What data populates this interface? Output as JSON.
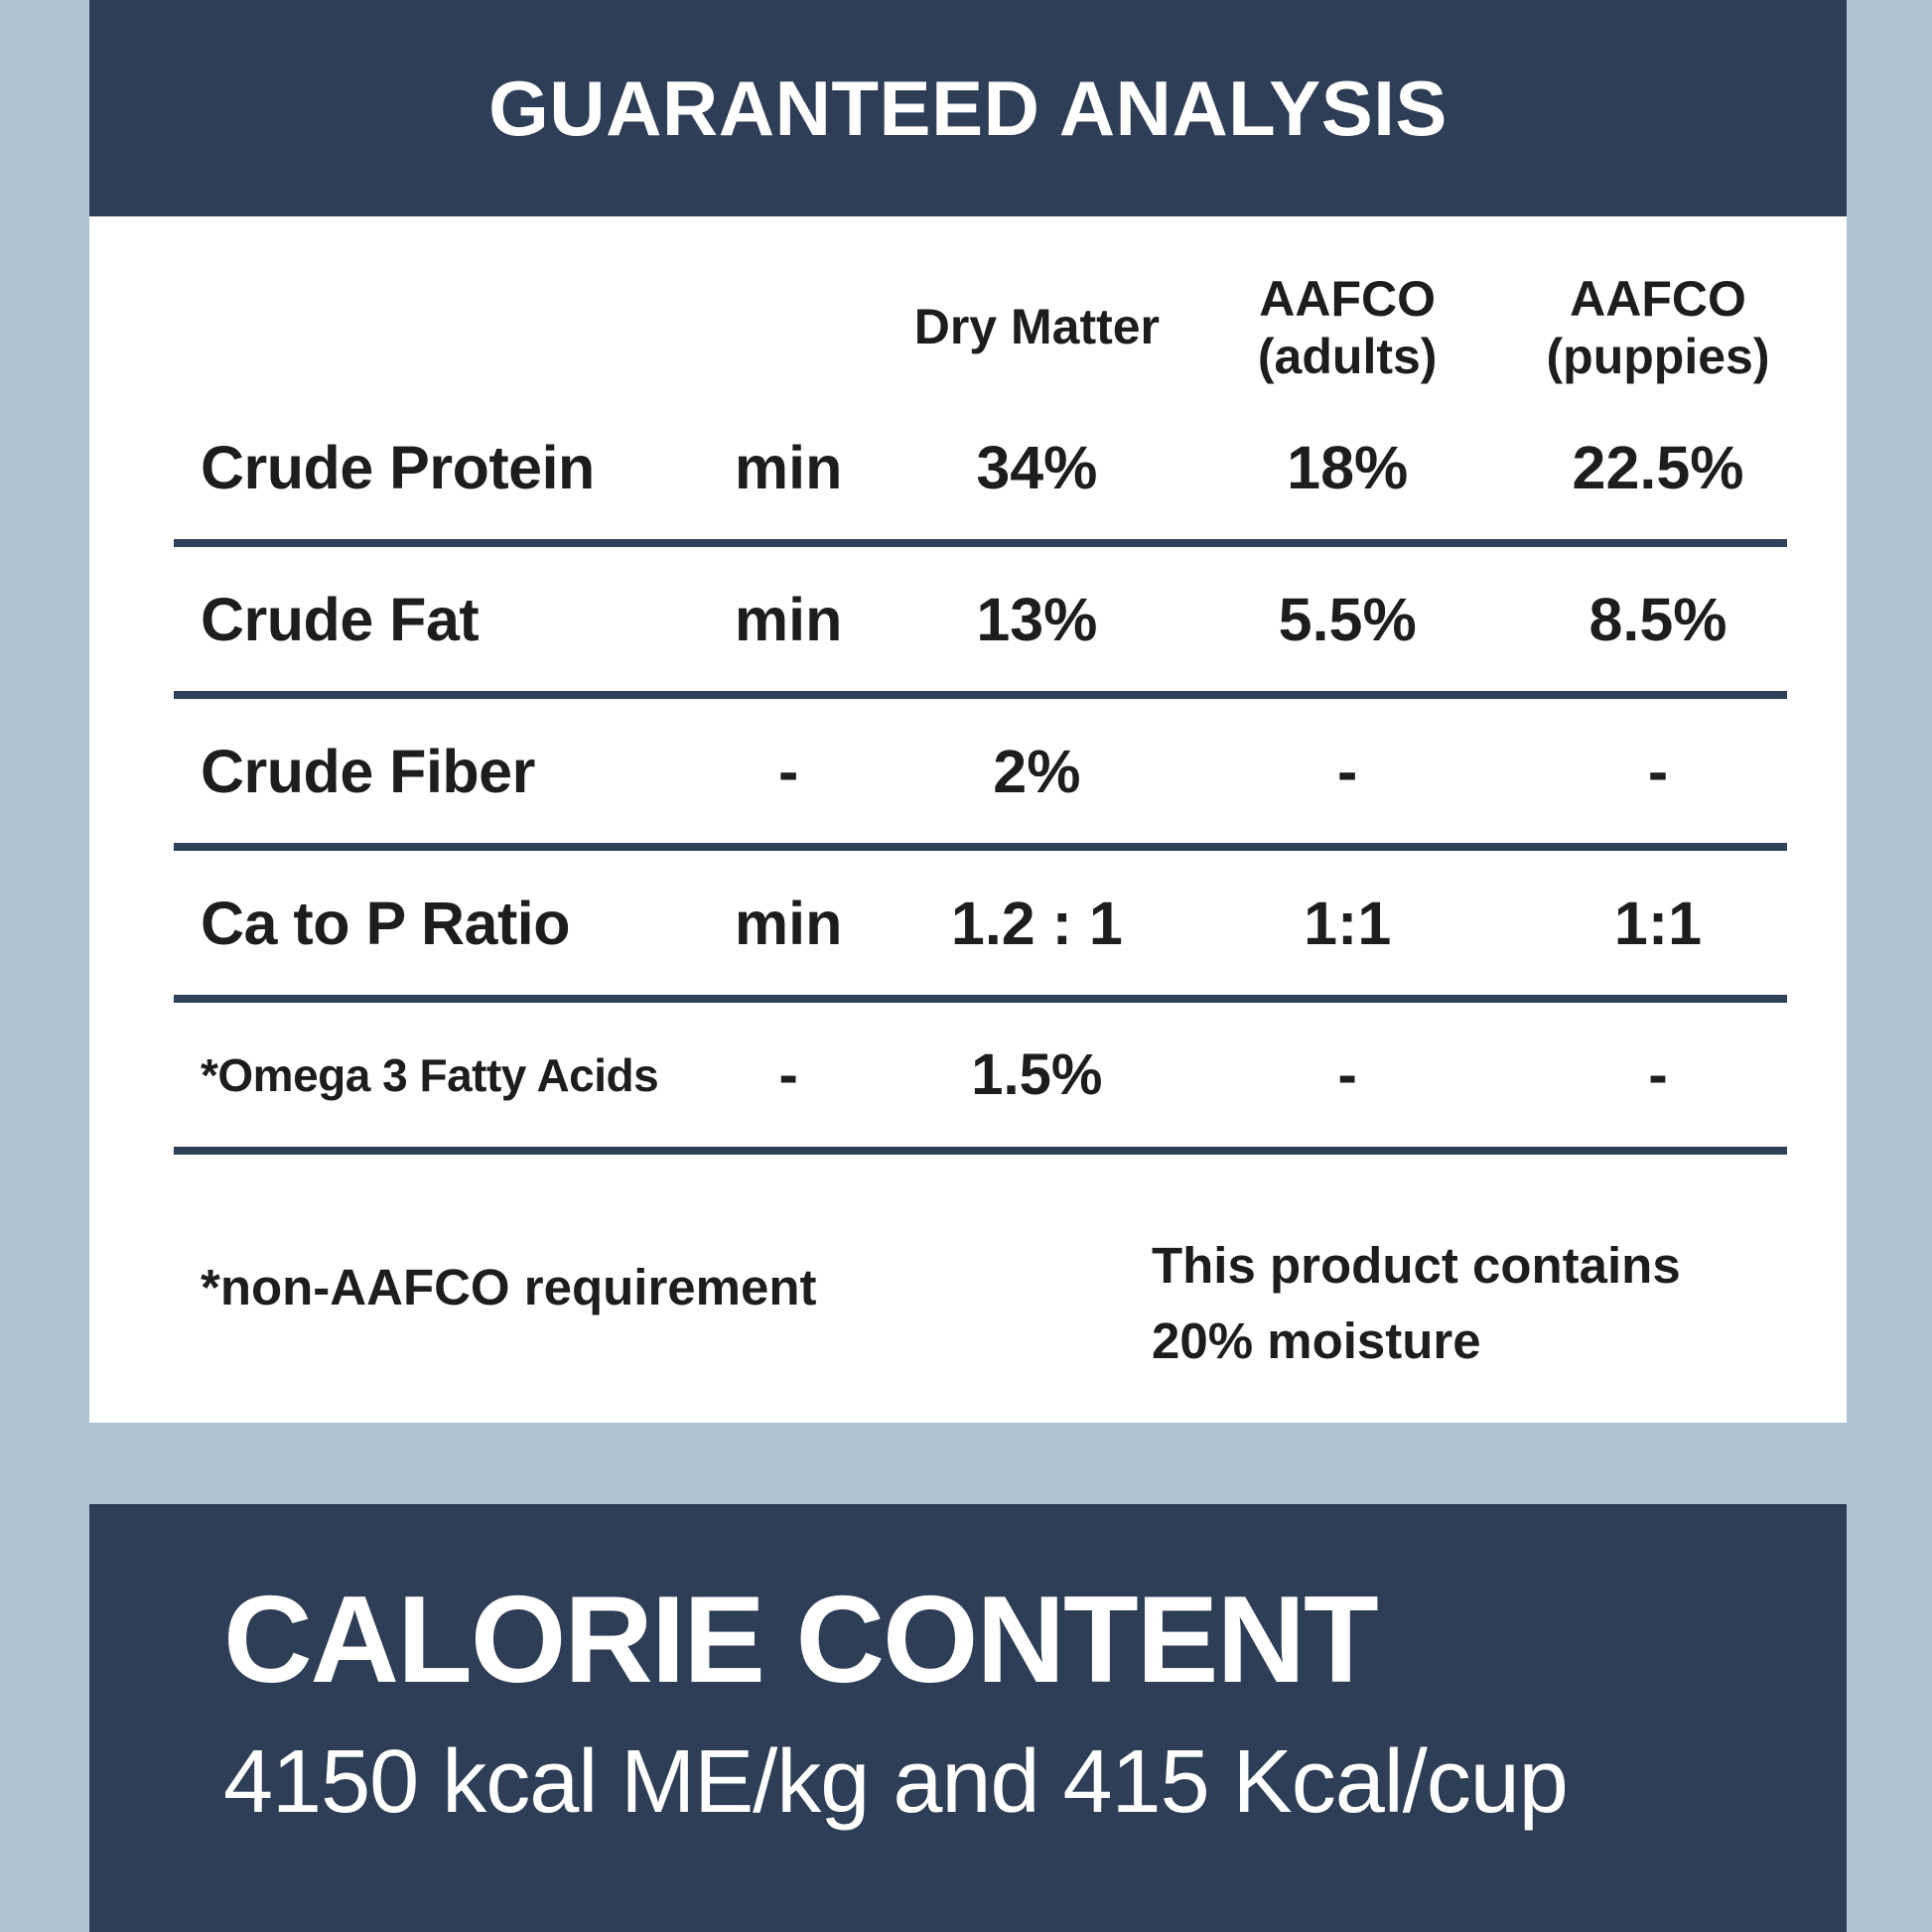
{
  "colors": {
    "navy": "#2e3e56",
    "light_blue": "#aec3d5",
    "panel_white": "#ffffff",
    "text_dark": "#1d1d1f"
  },
  "guaranteed_analysis": {
    "title": "GUARANTEED ANALYSIS",
    "table": {
      "header": {
        "dry_matter": "Dry Matter",
        "aafco_adults_line1": "AAFCO",
        "aafco_adults_line2": "(adults)",
        "aafco_puppies_line1": "AAFCO",
        "aafco_puppies_line2": "(puppies)"
      },
      "rows": [
        {
          "label": "Crude Protein",
          "qualifier": "min",
          "dry_matter": "34%",
          "aafco_adults": "18%",
          "aafco_puppies": "22.5%"
        },
        {
          "label": "Crude Fat",
          "qualifier": "min",
          "dry_matter": "13%",
          "aafco_adults": "5.5%",
          "aafco_puppies": "8.5%"
        },
        {
          "label": "Crude Fiber",
          "qualifier": "-",
          "dry_matter": "2%",
          "aafco_adults": "-",
          "aafco_puppies": "-"
        },
        {
          "label": "Ca to P Ratio",
          "qualifier": "min",
          "dry_matter": "1.2 : 1",
          "aafco_adults": "1:1",
          "aafco_puppies": "1:1"
        },
        {
          "label": "*Omega 3 Fatty Acids",
          "qualifier": "-",
          "dry_matter": "1.5%",
          "aafco_adults": "-",
          "aafco_puppies": "-"
        }
      ],
      "footnote": "*non-AAFCO requirement",
      "moisture_note_line1": "This product contains",
      "moisture_note_line2": "20% moisture"
    }
  },
  "calorie_content": {
    "title": "CALORIE CONTENT",
    "statement": "4150 kcal ME/kg and 415 Kcal/cup"
  }
}
